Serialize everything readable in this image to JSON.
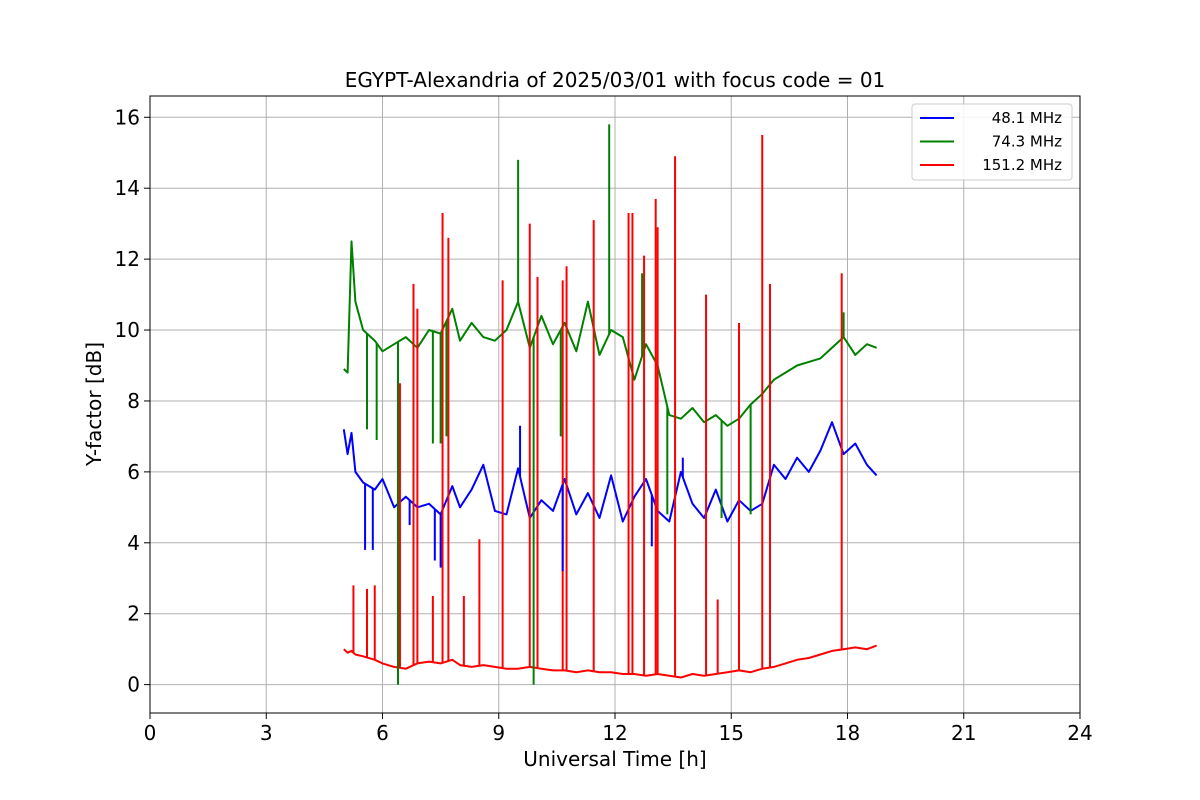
{
  "chart_data": {
    "type": "line",
    "title": "EGYPT-Alexandria of 2025/03/01 with focus code = 01",
    "xlabel": "Universal Time [h]",
    "ylabel": "Y-factor [dB]",
    "xlim": [
      0,
      24
    ],
    "ylim": [
      -0.8,
      16.6
    ],
    "xticks": [
      0,
      3,
      6,
      9,
      12,
      15,
      18,
      21,
      24
    ],
    "yticks": [
      0,
      2,
      4,
      6,
      8,
      10,
      12,
      14,
      16
    ],
    "grid": true,
    "legend_position": "upper right",
    "series": [
      {
        "name": "48.1 MHz",
        "color": "#0000ff",
        "x": [
          5.0,
          5.1,
          5.2,
          5.3,
          5.5,
          5.8,
          6.0,
          6.3,
          6.6,
          6.9,
          7.2,
          7.5,
          7.8,
          8.0,
          8.3,
          8.6,
          8.9,
          9.2,
          9.5,
          9.8,
          10.1,
          10.4,
          10.7,
          11.0,
          11.3,
          11.6,
          11.9,
          12.2,
          12.5,
          12.8,
          13.1,
          13.4,
          13.7,
          14.0,
          14.3,
          14.6,
          14.9,
          15.2,
          15.5,
          15.8,
          16.1,
          16.4,
          16.7,
          17.0,
          17.3,
          17.6,
          17.9,
          18.2,
          18.5,
          18.75
        ],
        "y": [
          7.2,
          6.5,
          7.1,
          6.0,
          5.7,
          5.5,
          5.8,
          5.0,
          5.3,
          5.0,
          5.1,
          4.8,
          5.6,
          5.0,
          5.5,
          6.2,
          4.9,
          4.8,
          6.1,
          4.7,
          5.2,
          4.9,
          5.8,
          4.8,
          5.4,
          4.7,
          5.9,
          4.6,
          5.3,
          5.8,
          4.9,
          4.6,
          6.0,
          5.1,
          4.7,
          5.5,
          4.6,
          5.2,
          4.9,
          5.1,
          6.2,
          5.8,
          6.4,
          6.0,
          6.6,
          7.4,
          6.5,
          6.8,
          6.2,
          5.9
        ]
      },
      {
        "name": "74.3 MHz",
        "color": "#008000",
        "x": [
          5.0,
          5.1,
          5.2,
          5.3,
          5.5,
          5.8,
          6.0,
          6.3,
          6.6,
          6.9,
          7.2,
          7.5,
          7.8,
          8.0,
          8.3,
          8.6,
          8.9,
          9.2,
          9.5,
          9.8,
          10.1,
          10.4,
          10.7,
          11.0,
          11.3,
          11.6,
          11.9,
          12.2,
          12.5,
          12.8,
          13.1,
          13.4,
          13.7,
          14.0,
          14.3,
          14.6,
          14.9,
          15.2,
          15.5,
          15.8,
          16.1,
          16.4,
          16.7,
          17.0,
          17.3,
          17.6,
          17.9,
          18.2,
          18.5,
          18.75
        ],
        "y": [
          8.9,
          8.8,
          12.5,
          10.8,
          10.0,
          9.7,
          9.4,
          9.6,
          9.8,
          9.5,
          10.0,
          9.9,
          10.6,
          9.7,
          10.2,
          9.8,
          9.7,
          10.0,
          10.8,
          9.5,
          10.4,
          9.6,
          10.2,
          9.4,
          10.8,
          9.3,
          10.0,
          9.8,
          8.6,
          9.6,
          9.0,
          7.6,
          7.5,
          7.8,
          7.4,
          7.6,
          7.3,
          7.5,
          7.9,
          8.2,
          8.6,
          8.8,
          9.0,
          9.1,
          9.2,
          9.5,
          9.8,
          9.3,
          9.6,
          9.5
        ]
      },
      {
        "name": "151.2 MHz",
        "color": "#ff0000",
        "x": [
          5.0,
          5.1,
          5.2,
          5.3,
          5.5,
          5.8,
          6.0,
          6.3,
          6.6,
          6.9,
          7.2,
          7.5,
          7.8,
          8.0,
          8.3,
          8.6,
          8.9,
          9.2,
          9.5,
          9.8,
          10.1,
          10.4,
          10.7,
          11.0,
          11.3,
          11.6,
          11.9,
          12.2,
          12.5,
          12.8,
          13.1,
          13.4,
          13.7,
          14.0,
          14.3,
          14.6,
          14.9,
          15.2,
          15.5,
          15.8,
          16.1,
          16.4,
          16.7,
          17.0,
          17.3,
          17.6,
          17.9,
          18.2,
          18.5,
          18.75
        ],
        "y": [
          1.0,
          0.9,
          0.95,
          0.85,
          0.8,
          0.7,
          0.6,
          0.5,
          0.45,
          0.6,
          0.65,
          0.6,
          0.7,
          0.55,
          0.5,
          0.55,
          0.5,
          0.45,
          0.45,
          0.5,
          0.45,
          0.4,
          0.4,
          0.35,
          0.4,
          0.35,
          0.35,
          0.3,
          0.3,
          0.25,
          0.3,
          0.25,
          0.2,
          0.3,
          0.25,
          0.3,
          0.35,
          0.4,
          0.35,
          0.45,
          0.5,
          0.6,
          0.7,
          0.75,
          0.85,
          0.95,
          1.0,
          1.05,
          1.0,
          1.1
        ]
      }
    ],
    "spikes": [
      {
        "series": "151.2 MHz",
        "x": [
          5.25,
          5.6,
          5.8,
          6.45,
          6.8,
          6.9,
          7.3,
          7.55,
          7.7,
          8.1,
          8.5,
          9.1,
          9.8,
          10.0,
          10.65,
          10.75,
          11.45,
          12.35,
          12.45,
          12.75,
          13.05,
          13.1,
          13.55,
          14.35,
          14.65,
          15.2,
          15.8,
          16.0,
          17.85
        ],
        "y": [
          2.8,
          2.7,
          2.8,
          8.5,
          11.3,
          10.6,
          2.5,
          13.3,
          12.6,
          2.5,
          4.1,
          11.4,
          13.0,
          11.5,
          11.4,
          11.8,
          13.1,
          13.3,
          13.3,
          12.1,
          13.7,
          12.9,
          14.9,
          11.0,
          2.4,
          10.2,
          15.5,
          11.3,
          11.6
        ]
      },
      {
        "series": "74.3 MHz",
        "x": [
          5.6,
          5.85,
          6.4,
          7.3,
          7.5,
          7.65,
          9.5,
          9.9,
          10.6,
          11.85,
          12.7,
          13.35,
          14.75,
          15.5,
          17.9
        ],
        "y": [
          7.2,
          6.9,
          0.0,
          6.8,
          6.8,
          7.0,
          14.8,
          0.0,
          7.0,
          15.8,
          11.6,
          4.8,
          4.7,
          4.8,
          10.5
        ]
      },
      {
        "series": "48.1 MHz",
        "x": [
          5.55,
          5.75,
          6.7,
          7.35,
          7.5,
          9.55,
          10.65,
          12.95,
          13.75
        ],
        "y": [
          3.8,
          3.8,
          4.5,
          3.5,
          3.3,
          7.3,
          3.2,
          3.9,
          6.4
        ]
      }
    ]
  }
}
